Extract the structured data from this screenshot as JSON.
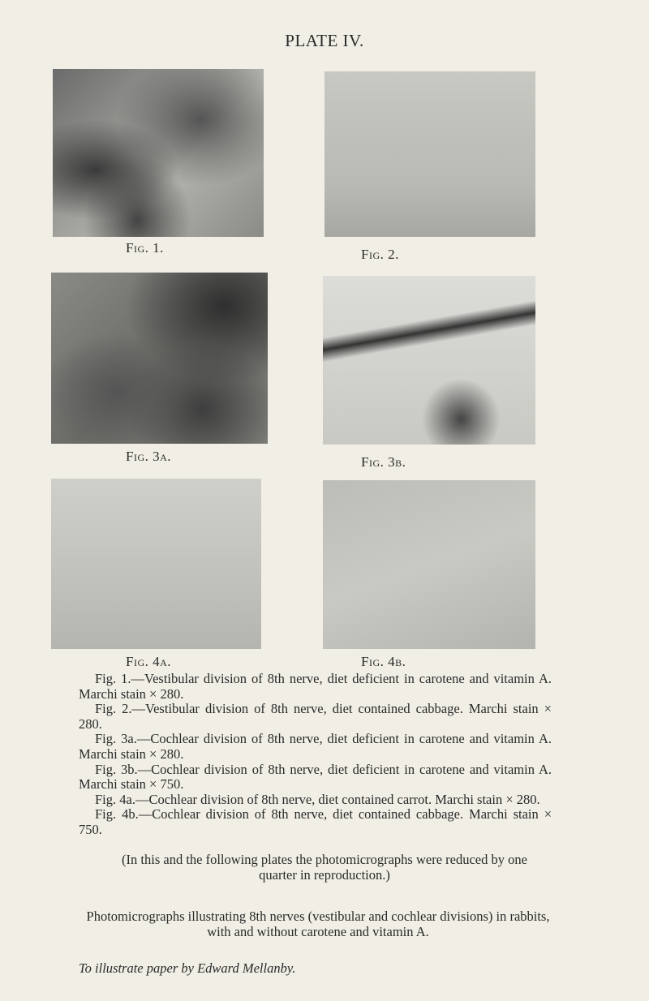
{
  "title": "PLATE IV.",
  "figures": [
    {
      "label": "Fig. 1."
    },
    {
      "label": "Fig. 2."
    },
    {
      "label": "Fig. 3a."
    },
    {
      "label": "Fig. 3b."
    },
    {
      "label": "Fig. 4a."
    },
    {
      "label": "Fig. 4b."
    }
  ],
  "captions": [
    "Fig. 1.—Vestibular division of 8th nerve, diet deficient in carotene and vitamin A. Marchi stain × 280.",
    "Fig. 2.—Vestibular division of 8th nerve, diet contained cabbage. Marchi stain × 280.",
    "Fig. 3a.—Cochlear division of 8th nerve, diet deficient in carotene and vitamin A. Marchi stain × 280.",
    "Fig. 3b.—Cochlear division of 8th nerve, diet deficient in carotene and vitamin A. Marchi stain × 750.",
    "Fig. 4a.—Cochlear division of 8th nerve, diet contained carrot. Marchi stain × 280.",
    "Fig. 4b.—Cochlear division of 8th nerve, diet contained cabbage. Marchi stain × 750."
  ],
  "note": "(In this and the following plates the photomicrographs were reduced by one quarter in reproduction.)",
  "description": "Photomicrographs illustrating 8th nerves (vestibular and cochlear divisions) in rabbits, with and without carotene and vitamin A.",
  "credit": "To illustrate paper by Edward Mellanby."
}
